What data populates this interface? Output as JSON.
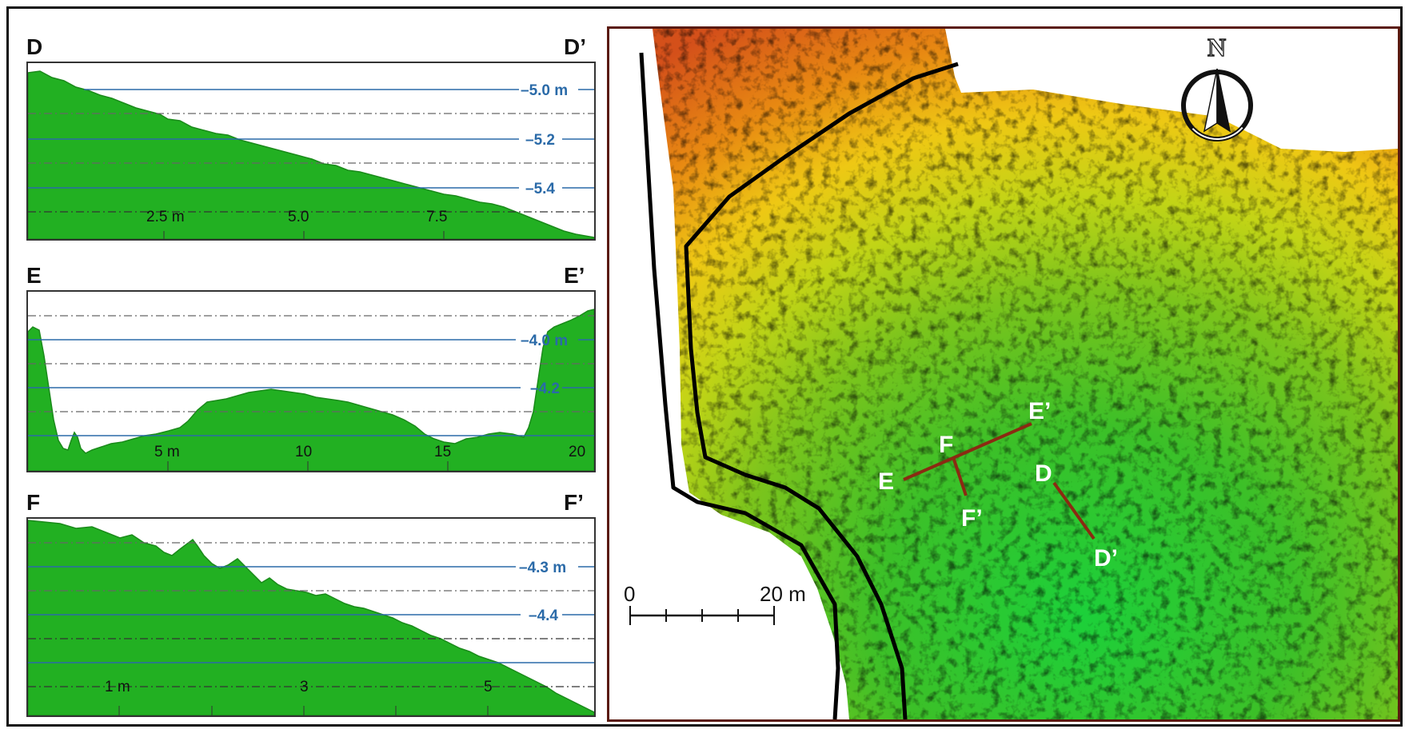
{
  "profiles": [
    {
      "id": "D",
      "start_label": "D",
      "end_label": "D’",
      "elev_labels": [
        "–5.0 m",
        "–5.2",
        "–5.4"
      ],
      "dist_labels": [
        "2.5 m",
        "5.0",
        "7.5"
      ],
      "fill_color": "#22b022"
    },
    {
      "id": "E",
      "start_label": "E",
      "end_label": "E’",
      "elev_labels": [
        "–4.0 m",
        "–4.2"
      ],
      "dist_labels": [
        "5 m",
        "10",
        "15",
        "20"
      ],
      "fill_color": "#22b022"
    },
    {
      "id": "F",
      "start_label": "F",
      "end_label": "F’",
      "elev_labels": [
        "–4.3 m",
        "–4.4"
      ],
      "dist_labels": [
        "1 m",
        "3",
        "5"
      ],
      "fill_color": "#22b022"
    }
  ],
  "map": {
    "north_label": "N",
    "scale_bar": {
      "start_label": "0",
      "end_label": "20 m"
    },
    "transect_labels": {
      "D": "D",
      "D_end": "D’",
      "E": "E",
      "E_end": "E’",
      "F": "F",
      "F_end": "F’"
    },
    "colors": {
      "transect": "#8b2a12",
      "boundary": "#000000",
      "label": "#ffffff"
    }
  }
}
